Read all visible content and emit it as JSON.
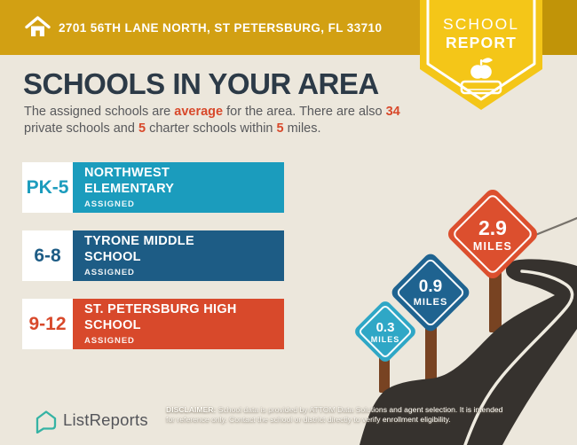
{
  "colors": {
    "background": "#ECE7DC",
    "header_gold": "#D2A013",
    "header_gold_dark": "#C19408",
    "badge_yellow": "#F4C618",
    "title_navy": "#2C3A47",
    "body_gray": "#58595C",
    "accent_orange": "#D8492B",
    "road": "#36322E",
    "road_line": "#EFEBE0",
    "far_road_line": "#77726B",
    "post_brown": "#784322",
    "logo_teal": "#35B3A4"
  },
  "header": {
    "address": "2701 56TH LANE NORTH, ST PETERSBURG, FL 33710",
    "badge": {
      "line1": "SCHOOL",
      "line2": "REPORT"
    }
  },
  "main": {
    "title": "SCHOOLS IN YOUR AREA",
    "intro_segments": [
      {
        "t": "The assigned schools are ",
        "hl": false
      },
      {
        "t": "average",
        "hl": true
      },
      {
        "t": " for the area. There are also ",
        "hl": false
      },
      {
        "t": "34",
        "hl": true
      },
      {
        "t": " private schools and ",
        "hl": false
      },
      {
        "t": "5",
        "hl": true
      },
      {
        "t": " charter schools within ",
        "hl": false
      },
      {
        "t": "5",
        "hl": true
      },
      {
        "t": " miles.",
        "hl": false
      }
    ]
  },
  "schools": [
    {
      "level": "PK-5",
      "name_line1": "NORTHWEST",
      "name_line2": "ELEMENTARY",
      "status": "ASSIGNED",
      "color": "#1B9CBD"
    },
    {
      "level": "6-8",
      "name_line1": "TYRONE MIDDLE",
      "name_line2": "SCHOOL",
      "status": "ASSIGNED",
      "color": "#1D5C85"
    },
    {
      "level": "9-12",
      "name_line1": "ST. PETERSBURG HIGH",
      "name_line2": "SCHOOL",
      "status": "ASSIGNED",
      "color": "#D8492B"
    }
  ],
  "signs": [
    {
      "distance": "0.3",
      "unit": "MILES",
      "color": "#2FA7C6"
    },
    {
      "distance": "0.9",
      "unit": "MILES",
      "color": "#1F6390"
    },
    {
      "distance": "2.9",
      "unit": "MILES",
      "color": "#DC4F2E"
    }
  ],
  "footer": {
    "brand": "ListReports",
    "disclaimer_label": "DISCLAIMER:",
    "disclaimer_line1": " School data is provided by ATTOM Data Solutions and agent selection. It is intended",
    "disclaimer_line2": "for reference only. Contact the school or district directly to verify enrollment eligibility."
  }
}
